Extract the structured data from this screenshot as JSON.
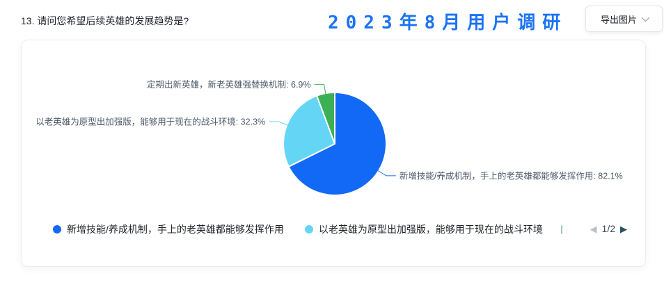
{
  "header": {
    "question_title": "13. 请问您希望后续英雄的发展趋势是?",
    "banner_title": "2023年8月用户调研",
    "export_button_label": "导出图片"
  },
  "colors": {
    "banner_blue": "#1a73f5",
    "primary_slice_blue": "#1169F5",
    "secondary_slice_lightblue": "#65D5F5",
    "tertiary_slice_green": "#3CB054"
  },
  "chart_data": {
    "type": "pie",
    "unit": "%",
    "start_angle": "top",
    "direction": "clockwise",
    "legend_position": "bottom",
    "slices": [
      {
        "label": "新增技能/养成机制，手上的老英雄都能够发挥作用",
        "value": 82.1,
        "color": "#1169F5"
      },
      {
        "label": "以老英雄为原型出加强版，能够用于现在的战斗环境",
        "value": 32.3,
        "color": "#65D5F5"
      },
      {
        "label": "定期出新英雄，新老英雄强替换机制",
        "value": 6.9,
        "color": "#3CB054"
      }
    ]
  },
  "legend": {
    "visible_count": 2,
    "pagination": {
      "label": "1/2",
      "prev_icon": "◀",
      "next_icon": "▶",
      "prev_enabled": false,
      "next_enabled": true
    }
  }
}
